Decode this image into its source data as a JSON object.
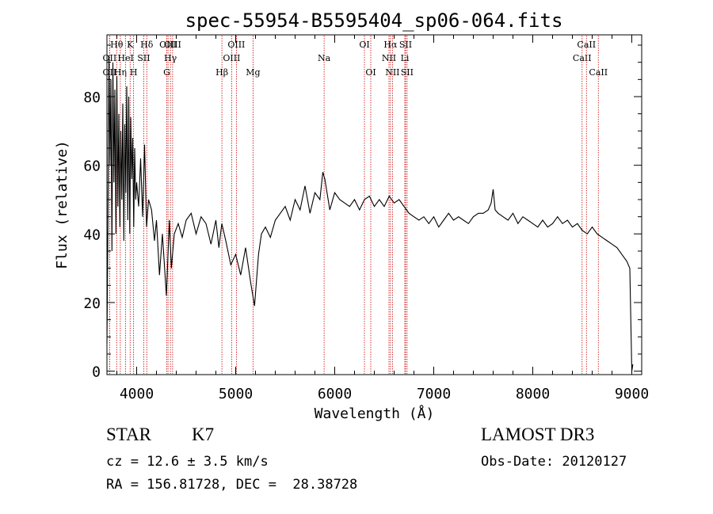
{
  "chart_data": {
    "type": "line",
    "title": "spec-55954-B5595404_sp06-064.fits",
    "xlabel": "Wavelength (Å)",
    "ylabel": "Flux (relative)",
    "xlim": [
      3700,
      9100
    ],
    "ylim": [
      -1,
      98
    ],
    "xticks": [
      4000,
      5000,
      6000,
      7000,
      8000,
      9000
    ],
    "yticks": [
      0,
      20,
      40,
      60,
      80
    ],
    "grid": false,
    "legend": "none",
    "colors": {
      "spectrum": "#000000",
      "lines": "#cc0000",
      "axes": "#000000"
    },
    "series": [
      {
        "x": [
          3700,
          3710,
          3720,
          3730,
          3740,
          3750,
          3760,
          3770,
          3780,
          3790,
          3800,
          3810,
          3820,
          3830,
          3840,
          3850,
          3860,
          3870,
          3880,
          3890,
          3900,
          3910,
          3920,
          3930,
          3940,
          3950,
          3960,
          3970,
          3980,
          3990,
          4000,
          4020,
          4040,
          4060,
          4080,
          4100,
          4120,
          4150,
          4180,
          4200,
          4230,
          4260,
          4300,
          4330,
          4350,
          4380,
          4420,
          4460,
          4500,
          4550,
          4600,
          4650,
          4700,
          4750,
          4800,
          4830,
          4860,
          4900,
          4950,
          5000,
          5050,
          5100,
          5150,
          5190,
          5230,
          5260,
          5300,
          5350,
          5400,
          5450,
          5500,
          5550,
          5600,
          5650,
          5700,
          5750,
          5800,
          5850,
          5880,
          5900,
          5950,
          6000,
          6050,
          6100,
          6150,
          6200,
          6250,
          6300,
          6350,
          6400,
          6450,
          6500,
          6550,
          6600,
          6650,
          6700,
          6750,
          6800,
          6850,
          6900,
          6950,
          7000,
          7050,
          7100,
          7150,
          7200,
          7250,
          7300,
          7350,
          7400,
          7450,
          7500,
          7550,
          7580,
          7600,
          7620,
          7650,
          7700,
          7750,
          7800,
          7850,
          7900,
          7950,
          8000,
          8050,
          8100,
          8150,
          8200,
          8250,
          8300,
          8350,
          8400,
          8450,
          8500,
          8550,
          8600,
          8650,
          8700,
          8750,
          8800,
          8850,
          8900,
          8950,
          8980,
          9000,
          9010
        ],
        "y": [
          8,
          45,
          92,
          60,
          85,
          35,
          90,
          55,
          82,
          40,
          86,
          48,
          75,
          42,
          70,
          50,
          78,
          38,
          72,
          52,
          83,
          44,
          80,
          40,
          74,
          56,
          68,
          42,
          65,
          50,
          55,
          48,
          62,
          45,
          66,
          42,
          50,
          47,
          38,
          44,
          28,
          40,
          22,
          44,
          30,
          40,
          43,
          39,
          44,
          46,
          40,
          45,
          43,
          37,
          44,
          36,
          43,
          38,
          31,
          34,
          28,
          36,
          26,
          19,
          34,
          40,
          42,
          39,
          44,
          46,
          48,
          44,
          50,
          47,
          54,
          46,
          52,
          50,
          58,
          56,
          47,
          52,
          50,
          49,
          48,
          50,
          47,
          50,
          51,
          48,
          50,
          48,
          51,
          49,
          50,
          48,
          46,
          45,
          44,
          45,
          43,
          45,
          42,
          44,
          46,
          44,
          45,
          44,
          43,
          45,
          46,
          46,
          47,
          49,
          53,
          47,
          46,
          45,
          44,
          46,
          43,
          45,
          44,
          43,
          42,
          44,
          42,
          43,
          45,
          43,
          44,
          42,
          43,
          41,
          40,
          42,
          40,
          39,
          38,
          37,
          36,
          34,
          32,
          30,
          0,
          2
        ]
      }
    ],
    "emission_lines": [
      {
        "label": "Hθ",
        "x": 3798,
        "row": 1
      },
      {
        "label": "OII",
        "x": 3727,
        "row": 2
      },
      {
        "label": "OII",
        "x": 3727,
        "row": 3
      },
      {
        "label": "Hη",
        "x": 3835,
        "row": 3
      },
      {
        "label": "HeI",
        "x": 3889,
        "row": 2
      },
      {
        "label": "K",
        "x": 3934,
        "row": 1
      },
      {
        "label": "H",
        "x": 3969,
        "row": 3
      },
      {
        "label": "SII",
        "x": 4072,
        "row": 2
      },
      {
        "label": "Hδ",
        "x": 4102,
        "row": 1
      },
      {
        "label": "OIII",
        "x": 4317,
        "row": 1
      },
      {
        "label": "Hγ",
        "x": 4341,
        "row": 2
      },
      {
        "label": "G",
        "x": 4304,
        "row": 3
      },
      {
        "label": "OIII",
        "x": 4363,
        "row": 1
      },
      {
        "label": "Hβ",
        "x": 4861,
        "row": 3
      },
      {
        "label": "OIII",
        "x": 4959,
        "row": 2
      },
      {
        "label": "OIII",
        "x": 5007,
        "row": 1
      },
      {
        "label": "Mg",
        "x": 5175,
        "row": 3
      },
      {
        "label": "Na",
        "x": 5893,
        "row": 2
      },
      {
        "label": "OI",
        "x": 6300,
        "row": 1
      },
      {
        "label": "OI",
        "x": 6364,
        "row": 3
      },
      {
        "label": "NII",
        "x": 6548,
        "row": 2
      },
      {
        "label": "Hα",
        "x": 6563,
        "row": 1
      },
      {
        "label": "NII",
        "x": 6583,
        "row": 3
      },
      {
        "label": "SII",
        "x": 6716,
        "row": 1
      },
      {
        "label": "Li",
        "x": 6708,
        "row": 2
      },
      {
        "label": "SII",
        "x": 6731,
        "row": 3
      },
      {
        "label": "CaII",
        "x": 8498,
        "row": 2
      },
      {
        "label": "CaII",
        "x": 8542,
        "row": 1
      },
      {
        "label": "CaII",
        "x": 8662,
        "row": 3
      }
    ]
  },
  "info": {
    "object_class": "STAR",
    "subclass": "K7",
    "survey": "LAMOST DR3",
    "cz": "cz = 12.6 ± 3.5 km/s",
    "obs_date": "Obs-Date: 20120127",
    "coords": "RA = 156.81728, DEC =  28.38728"
  }
}
